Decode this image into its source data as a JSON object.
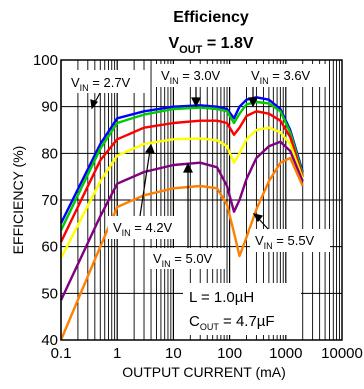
{
  "chart_data": {
    "type": "line",
    "title": "Efficiency",
    "subtitle": {
      "prefix": "V",
      "sub": "OUT",
      "suffix": " = 1.8V"
    },
    "xlabel": "OUTPUT CURRENT (mA)",
    "ylabel": "EFFICIENCY (%)",
    "xscale": "log",
    "xlim": [
      0.1,
      10000
    ],
    "ylim": [
      40,
      100
    ],
    "xticks": [
      0.1,
      1,
      10,
      100,
      1000,
      10000
    ],
    "xtick_labels": [
      "0.1",
      "1",
      "10",
      "100",
      "1000",
      "10000"
    ],
    "yticks": [
      40,
      50,
      60,
      70,
      80,
      90,
      100
    ],
    "ytick_labels": [
      "40",
      "50",
      "60",
      "70",
      "80",
      "90",
      "100"
    ],
    "grid": true,
    "conditions": [
      {
        "prefix": "L = 1.0µH",
        "sub": "",
        "suffix": ""
      },
      {
        "prefix": "C",
        "sub": "OUT",
        "suffix": " = 4.7µF"
      }
    ],
    "series": [
      {
        "label": {
          "prefix": "V",
          "sub": "IN",
          "suffix": " = 2.7V"
        },
        "color": "#0000ff",
        "x": [
          0.1,
          0.5,
          1,
          3,
          10,
          30,
          60,
          90,
          120,
          150,
          200,
          300,
          500,
          800,
          1200,
          2000
        ],
        "y": [
          65,
          82,
          87.5,
          89,
          90,
          90.3,
          90,
          89.5,
          87.5,
          90,
          91.5,
          92,
          91.5,
          89.5,
          85,
          76
        ]
      },
      {
        "label": {
          "prefix": "V",
          "sub": "IN",
          "suffix": " = 3.0V"
        },
        "color": "#00cc00",
        "x": [
          0.1,
          0.5,
          1,
          3,
          10,
          30,
          60,
          90,
          120,
          150,
          200,
          300,
          500,
          800,
          1200,
          2000
        ],
        "y": [
          63.5,
          81,
          86.5,
          88.3,
          89.5,
          89.8,
          89.5,
          89,
          86.5,
          88.5,
          90.5,
          91,
          90.7,
          89,
          84.5,
          75.5
        ]
      },
      {
        "label": {
          "prefix": "V",
          "sub": "IN",
          "suffix": " = 3.6V"
        },
        "color": "#ff0000",
        "x": [
          0.1,
          0.5,
          1,
          3,
          10,
          30,
          60,
          90,
          120,
          150,
          200,
          300,
          500,
          800,
          1200,
          2000
        ],
        "y": [
          61,
          78.5,
          83,
          85.5,
          86.5,
          87,
          87,
          86.5,
          84,
          85.5,
          88,
          89,
          88.5,
          87,
          83.5,
          75
        ]
      },
      {
        "label": {
          "prefix": "V",
          "sub": "IN",
          "suffix": " = 4.2V"
        },
        "color": "#ffff00",
        "x": [
          0.1,
          0.5,
          1,
          3,
          10,
          30,
          60,
          90,
          120,
          150,
          200,
          300,
          500,
          800,
          1200,
          2000
        ],
        "y": [
          57.5,
          74,
          79.5,
          82,
          83,
          83.2,
          82.8,
          81.5,
          78,
          80,
          83,
          85,
          85.5,
          84.5,
          82,
          74.5
        ]
      },
      {
        "label": {
          "prefix": "V",
          "sub": "IN",
          "suffix": " = 5.0V"
        },
        "color": "#800080",
        "x": [
          0.1,
          0.5,
          1,
          3,
          10,
          30,
          60,
          90,
          120,
          150,
          200,
          300,
          500,
          800,
          1200,
          2000
        ],
        "y": [
          48.5,
          66.5,
          73.5,
          76,
          77.5,
          78,
          77,
          73,
          67.5,
          70,
          74.5,
          79,
          81.5,
          82.5,
          80.5,
          74
        ]
      },
      {
        "label": {
          "prefix": "V",
          "sub": "IN",
          "suffix": " = 5.5V"
        },
        "color": "#ff8000",
        "x": [
          0.1,
          0.5,
          1,
          3,
          10,
          30,
          60,
          90,
          120,
          150,
          200,
          300,
          500,
          800,
          1200,
          2000
        ],
        "y": [
          40,
          60,
          68.5,
          71,
          72.5,
          73,
          72.5,
          69,
          63,
          58,
          62,
          68,
          74,
          78,
          79,
          73
        ]
      }
    ]
  }
}
